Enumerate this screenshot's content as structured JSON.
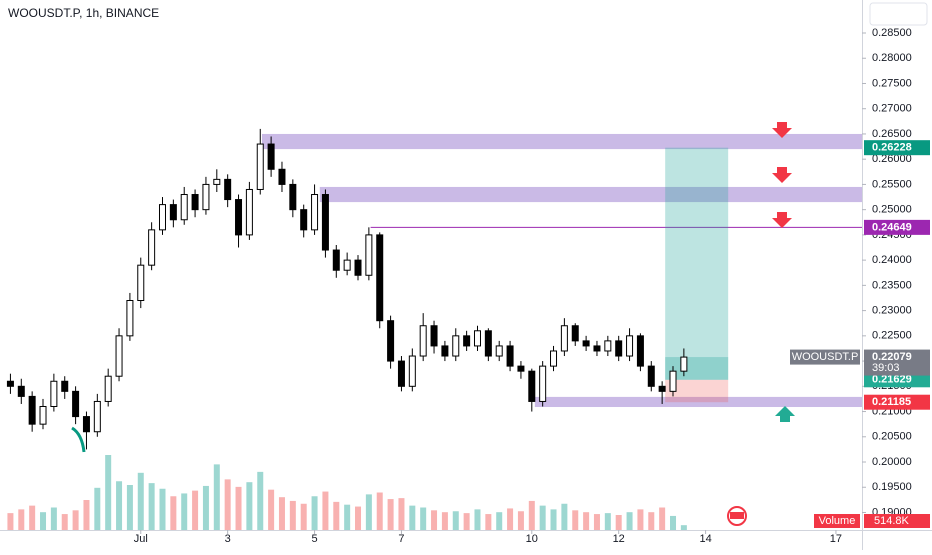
{
  "chart_data": {
    "type": "candlestick",
    "title": "WOOUSDT.P, 1h, BINANCE",
    "x": [
      -2,
      -1.75,
      -1.5,
      -1.25,
      -1,
      -0.75,
      -0.5,
      -0.25,
      0,
      0.25,
      0.5,
      0.75,
      1,
      1.25,
      1.5,
      1.75,
      2,
      2.25,
      2.5,
      2.75,
      3,
      3.25,
      3.5,
      3.75,
      4,
      4.25,
      4.5,
      4.75,
      5,
      5.25,
      5.5,
      5.75,
      6,
      6.25,
      6.5,
      6.75,
      7,
      7.25,
      7.5,
      7.75,
      8,
      8.25,
      8.5,
      8.75,
      9,
      9.25,
      9.5,
      9.75,
      10,
      10.25,
      10.5,
      10.75,
      11,
      11.25,
      11.5,
      11.75,
      12,
      12.25,
      12.5,
      12.75,
      13,
      13.25,
      13.5
    ],
    "open": [
      0.216,
      0.215,
      0.213,
      0.2075,
      0.211,
      0.216,
      0.214,
      0.209,
      0.206,
      0.212,
      0.217,
      0.225,
      0.232,
      0.239,
      0.246,
      0.251,
      0.248,
      0.253,
      0.25,
      0.255,
      0.256,
      0.252,
      0.245,
      0.254,
      0.263,
      0.258,
      0.255,
      0.25,
      0.246,
      0.253,
      0.242,
      0.238,
      0.24,
      0.237,
      0.245,
      0.228,
      0.22,
      0.215,
      0.221,
      0.227,
      0.223,
      0.221,
      0.225,
      0.223,
      0.226,
      0.221,
      0.223,
      0.219,
      0.218,
      0.212,
      0.219,
      0.222,
      0.227,
      0.224,
      0.223,
      0.222,
      0.224,
      0.221,
      0.225,
      0.219,
      0.215,
      0.214,
      0.218
    ],
    "high": [
      0.2175,
      0.2165,
      0.214,
      0.2125,
      0.2175,
      0.217,
      0.215,
      0.21,
      0.2135,
      0.2185,
      0.2265,
      0.2335,
      0.2405,
      0.2475,
      0.2525,
      0.252,
      0.2545,
      0.254,
      0.2565,
      0.258,
      0.257,
      0.253,
      0.2555,
      0.266,
      0.2645,
      0.2595,
      0.256,
      0.251,
      0.255,
      0.254,
      0.243,
      0.2415,
      0.241,
      0.2465,
      0.2455,
      0.229,
      0.221,
      0.2225,
      0.2295,
      0.228,
      0.224,
      0.2265,
      0.226,
      0.227,
      0.2265,
      0.224,
      0.224,
      0.22,
      0.2185,
      0.22,
      0.223,
      0.2285,
      0.2275,
      0.225,
      0.224,
      0.225,
      0.225,
      0.2265,
      0.2255,
      0.22,
      0.216,
      0.219,
      0.2225
    ],
    "low": [
      0.2135,
      0.2115,
      0.206,
      0.2065,
      0.21,
      0.2125,
      0.2075,
      0.2025,
      0.205,
      0.211,
      0.216,
      0.224,
      0.2305,
      0.238,
      0.245,
      0.2465,
      0.247,
      0.2485,
      0.249,
      0.2535,
      0.2505,
      0.2425,
      0.244,
      0.253,
      0.2565,
      0.2535,
      0.2485,
      0.2445,
      0.245,
      0.2405,
      0.2365,
      0.237,
      0.236,
      0.236,
      0.2265,
      0.2185,
      0.214,
      0.214,
      0.22,
      0.2215,
      0.22,
      0.22,
      0.222,
      0.222,
      0.22,
      0.22,
      0.218,
      0.2165,
      0.21,
      0.211,
      0.218,
      0.221,
      0.223,
      0.222,
      0.221,
      0.221,
      0.22,
      0.22,
      0.218,
      0.214,
      0.2115,
      0.213,
      0.217
    ],
    "close": [
      0.215,
      0.213,
      0.2075,
      0.211,
      0.216,
      0.214,
      0.209,
      0.206,
      0.212,
      0.217,
      0.225,
      0.232,
      0.239,
      0.246,
      0.251,
      0.248,
      0.253,
      0.25,
      0.255,
      0.256,
      0.252,
      0.245,
      0.254,
      0.263,
      0.258,
      0.255,
      0.25,
      0.246,
      0.253,
      0.242,
      0.238,
      0.24,
      0.237,
      0.245,
      0.228,
      0.22,
      0.215,
      0.221,
      0.227,
      0.223,
      0.221,
      0.225,
      0.223,
      0.226,
      0.221,
      0.223,
      0.219,
      0.218,
      0.212,
      0.219,
      0.222,
      0.227,
      0.224,
      0.223,
      0.222,
      0.224,
      0.221,
      0.225,
      0.219,
      0.215,
      0.214,
      0.218,
      0.22079
    ],
    "up_color": "#ffffff",
    "down_color": "#000000",
    "wick_color": "#000000",
    "volume": {
      "name": "Volume",
      "up_color": "#26a69a",
      "down_color": "#ef5350",
      "last_value_label": "514.8K",
      "values": [
        1800000,
        2200000,
        2600000,
        1900000,
        2400000,
        1700000,
        2100000,
        3200000,
        4500000,
        8000000,
        5200000,
        4800000,
        6100000,
        5000000,
        4400000,
        3600000,
        3900000,
        4200000,
        4700000,
        7000000,
        5400000,
        4600000,
        5100000,
        6200000,
        4300000,
        3500000,
        3100000,
        2800000,
        3600000,
        4100000,
        3000000,
        2700000,
        2500000,
        3800000,
        4000000,
        3300000,
        3400000,
        2600000,
        2400000,
        2100000,
        1900000,
        2000000,
        1800000,
        2200000,
        1700000,
        1900000,
        2300000,
        2000000,
        3100000,
        2600000,
        2200000,
        2800000,
        2100000,
        1900000,
        1700000,
        1800000,
        1600000,
        1900000,
        2200000,
        1900000,
        2400000,
        1500000,
        514800
      ]
    },
    "xlim": [
      -2.24,
      17.6
    ],
    "xticks": [
      {
        "value": 1,
        "label": "Jul"
      },
      3,
      5,
      7,
      10,
      12,
      14,
      17
    ],
    "ylim": [
      0.18653,
      0.29154
    ],
    "yticks": [
      {
        "value": 0.19,
        "label": "0.19000"
      },
      {
        "value": 0.195,
        "label": "0.19500"
      },
      {
        "value": 0.2,
        "label": "0.20000"
      },
      {
        "value": 0.205,
        "label": "0.20500"
      },
      {
        "value": 0.21,
        "label": "0.21000"
      },
      {
        "value": 0.215,
        "label": "0.21500"
      },
      {
        "value": 0.22,
        "label": "0.22000"
      },
      {
        "value": 0.225,
        "label": "0.22500"
      },
      {
        "value": 0.23,
        "label": "0.23000"
      },
      {
        "value": 0.235,
        "label": "0.23500"
      },
      {
        "value": 0.24,
        "label": "0.24000"
      },
      {
        "value": 0.245,
        "label": "0.24500"
      },
      {
        "value": 0.25,
        "label": "0.25000"
      },
      {
        "value": 0.255,
        "label": "0.25500"
      },
      {
        "value": 0.26,
        "label": "0.26000"
      },
      {
        "value": 0.265,
        "label": "0.26500"
      },
      {
        "value": 0.27,
        "label": "0.27000"
      },
      {
        "value": 0.275,
        "label": "0.27500"
      },
      {
        "value": 0.28,
        "label": "0.28000"
      },
      {
        "value": 0.285,
        "label": "0.28500"
      }
    ],
    "grid": false,
    "levels": [
      {
        "value": 0.26228,
        "label": "0.26228",
        "color": "#089981"
      },
      {
        "value": 0.24649,
        "label": "0.24649",
        "color": "#9c27b0"
      },
      {
        "value": 0.21629,
        "label": "0.21629",
        "color": "#22ab94"
      },
      {
        "value": 0.21185,
        "label": "0.21185",
        "color": "#f23645"
      },
      {
        "value": 0.22079,
        "label": "0.22079",
        "color": "#787b86",
        "name": "WOOUSDT.P",
        "countdown": "39:03"
      }
    ],
    "zones": [
      {
        "x_start": 3.79,
        "lower": 0.262,
        "upper": 0.265,
        "color": "#b39ddb"
      },
      {
        "x_start": 5.12,
        "lower": 0.2515,
        "upper": 0.2545,
        "color": "#b39ddb"
      },
      {
        "x_start": 10.07,
        "lower": 0.2109,
        "upper": 0.2129,
        "color": "#b39ddb"
      }
    ],
    "line_start": 6.29,
    "position": {
      "x_start": 13.07,
      "x_end": 14.52
    }
  }
}
